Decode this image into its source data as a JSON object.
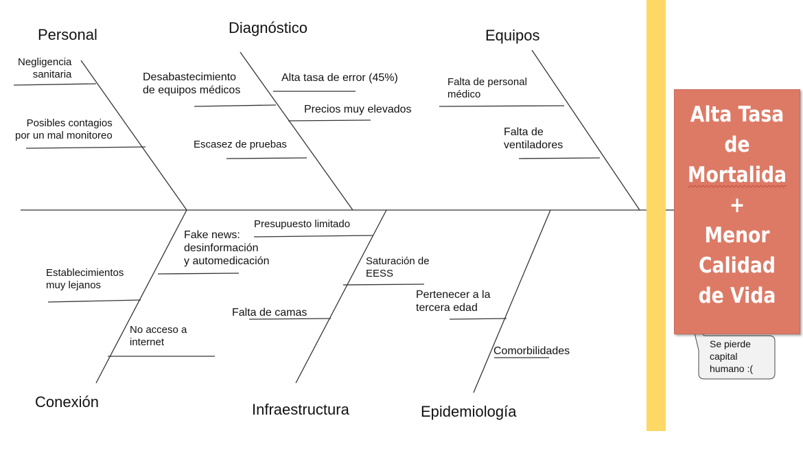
{
  "colors": {
    "spine": "#333333",
    "bar": "#fdd864",
    "effect_box": "#dd7a66",
    "effect_text": "#ffffff",
    "callout_bg": "#f2f2f2"
  },
  "categories": {
    "personal": "Personal",
    "diagnostico": "Diagnóstico",
    "equipos": "Equipos",
    "conexion": "Conexión",
    "infraestructura": "Infraestructura",
    "epidemiologia": "Epidemiología"
  },
  "causes": {
    "personal": {
      "negligencia": "Negligencia\nsanitaria",
      "contagios": "Posibles contagios\npor un mal monitoreo"
    },
    "diagnostico": {
      "desabastecimiento": "Desabastecimiento\nde equipos médicos",
      "error": "Alta tasa de error (45%)",
      "precios": "Precios muy elevados",
      "escasez": "Escasez de pruebas"
    },
    "equipos": {
      "personal_medico": "Falta de personal\nmédico",
      "ventiladores": "Falta de\nventiladores"
    },
    "conexion": {
      "fake_news": "Fake news:\ndesinformación\ny automedicación",
      "establecimientos": "Establecimientos\nmuy lejanos",
      "internet": "No acceso a\ninternet"
    },
    "infraestructura": {
      "presupuesto": "Presupuesto limitado",
      "saturacion": "Saturación de\nEESS",
      "camas": "Falta de camas"
    },
    "epidemiologia": {
      "tercera_edad": "Pertenecer a la\ntercera edad",
      "comorbilidades": "Comorbilidades"
    }
  },
  "effect": {
    "line1": "Alta Tasa",
    "line2": "de",
    "line3": "Mortalida",
    "line4": "+",
    "line5": "Menor",
    "line6": "Calidad",
    "line7": "de Vida"
  },
  "callout": "Se pierde\ncapital\nhumano :("
}
